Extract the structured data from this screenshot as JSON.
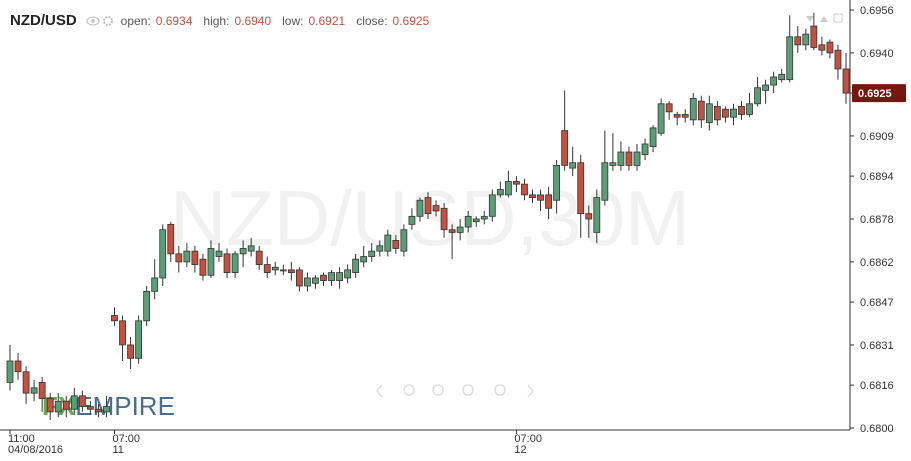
{
  "chart_data": {
    "type": "candlestick",
    "title": "NZD/USD",
    "summary_labels": [
      "open:",
      "high:",
      "low:",
      "close:"
    ],
    "summary_values": [
      "0.6934",
      "0.6940",
      "0.6921",
      "0.6925"
    ],
    "watermark": "NZD/USD,30M",
    "logo": [
      "FX",
      "EMPIRE"
    ],
    "up_color": "#5b9e76",
    "down_color": "#c4503f",
    "last_price": 0.6925,
    "ylim": [
      0.68,
      0.6956
    ],
    "yticks": [
      {
        "value": 0.68,
        "label": "0.6800"
      },
      0.6816,
      0.6831,
      0.6847,
      0.6862,
      0.6878,
      0.6894,
      0.6909,
      0.6925,
      {
        "value": 0.694,
        "label": "0.6940"
      },
      0.6956
    ],
    "xticks": [
      {
        "value": 0,
        "label": "11:00",
        "sublabel": "04/08/2016"
      },
      {
        "value": 13,
        "label": "07:00",
        "sublabel": "11"
      },
      {
        "value": 63,
        "label": "07:00",
        "sublabel": "12"
      }
    ],
    "open": [
      0.6817,
      0.6825,
      0.6821,
      0.6813,
      0.6817,
      0.6811,
      0.6806,
      0.681,
      0.6807,
      0.6812,
      0.6808,
      0.6807,
      0.6806,
      0.6842,
      0.684,
      0.6831,
      0.6826,
      0.684,
      0.6851,
      0.6856,
      0.6876,
      0.6865,
      0.6862,
      0.6866,
      0.6863,
      0.6857,
      0.6864,
      0.6865,
      0.6858,
      0.6865,
      0.6866,
      0.6866,
      0.6861,
      0.6859,
      0.6859,
      0.6859,
      0.6859,
      0.6853,
      0.6854,
      0.6857,
      0.6855,
      0.6855,
      0.6856,
      0.6858,
      0.6862,
      0.6864,
      0.6866,
      0.6866,
      0.687,
      0.6866,
      0.6876,
      0.6879,
      0.6886,
      0.6883,
      0.6882,
      0.6874,
      0.6873,
      0.6875,
      0.6877,
      0.6878,
      0.6879,
      0.6887,
      0.6887,
      0.6892,
      0.6891,
      0.6887,
      0.6887,
      0.6887,
      0.6885,
      0.6911,
      0.6897,
      0.6899,
      0.688,
      0.6873,
      0.6885,
      0.6898,
      0.6898,
      0.6903,
      0.6898,
      0.6902,
      0.6905,
      0.691,
      0.6921,
      0.6917,
      0.6917,
      0.6915,
      0.6922,
      0.6914,
      0.692,
      0.6919,
      0.6916,
      0.692,
      0.6917,
      0.6921,
      0.6926,
      0.6928,
      0.693,
      0.693,
      0.6946,
      0.6943,
      0.695,
      0.6943,
      0.6944,
      0.6941,
      0.6934
    ],
    "high": [
      0.6831,
      0.6828,
      0.6823,
      0.6818,
      0.6819,
      0.6813,
      0.6813,
      0.6812,
      0.6815,
      0.6814,
      0.681,
      0.6809,
      0.6812,
      0.6845,
      0.6842,
      0.6834,
      0.6842,
      0.6853,
      0.6863,
      0.6876,
      0.6877,
      0.6868,
      0.6869,
      0.6868,
      0.6865,
      0.687,
      0.6869,
      0.6867,
      0.6866,
      0.687,
      0.6871,
      0.6868,
      0.6864,
      0.6862,
      0.6861,
      0.6862,
      0.686,
      0.6858,
      0.6857,
      0.6858,
      0.6859,
      0.686,
      0.6861,
      0.6865,
      0.6868,
      0.6869,
      0.687,
      0.6874,
      0.6872,
      0.6876,
      0.6882,
      0.6886,
      0.6888,
      0.6885,
      0.6884,
      0.6876,
      0.6878,
      0.6881,
      0.6879,
      0.6881,
      0.6889,
      0.6892,
      0.6896,
      0.6894,
      0.6893,
      0.6889,
      0.6889,
      0.689,
      0.69,
      0.6926,
      0.6905,
      0.6902,
      0.6883,
      0.6889,
      0.6911,
      0.691,
      0.6907,
      0.6905,
      0.6906,
      0.6908,
      0.6913,
      0.6923,
      0.6922,
      0.6918,
      0.6919,
      0.6925,
      0.6924,
      0.6924,
      0.6922,
      0.692,
      0.6921,
      0.6922,
      0.6925,
      0.6931,
      0.693,
      0.6933,
      0.6934,
      0.6954,
      0.695,
      0.6949,
      0.6955,
      0.6946,
      0.6945,
      0.6943,
      0.694
    ],
    "low": [
      0.6814,
      0.6818,
      0.6809,
      0.681,
      0.6806,
      0.6803,
      0.6804,
      0.6804,
      0.6805,
      0.6806,
      0.6805,
      0.6804,
      0.6804,
      0.6838,
      0.6825,
      0.6822,
      0.6824,
      0.6838,
      0.6848,
      0.6853,
      0.6862,
      0.6858,
      0.686,
      0.6858,
      0.6855,
      0.6856,
      0.6862,
      0.6856,
      0.6856,
      0.686,
      0.6864,
      0.6859,
      0.6856,
      0.6857,
      0.6857,
      0.6855,
      0.6851,
      0.6851,
      0.6852,
      0.6853,
      0.6853,
      0.6852,
      0.6854,
      0.6856,
      0.686,
      0.6862,
      0.6864,
      0.6864,
      0.6865,
      0.6864,
      0.6874,
      0.6877,
      0.6878,
      0.6879,
      0.6871,
      0.6863,
      0.687,
      0.6873,
      0.6875,
      0.6876,
      0.6877,
      0.6886,
      0.6886,
      0.6888,
      0.6885,
      0.6884,
      0.6881,
      0.6878,
      0.688,
      0.6896,
      0.6894,
      0.6871,
      0.6871,
      0.6869,
      0.6883,
      0.6896,
      0.6896,
      0.6896,
      0.6896,
      0.69,
      0.6903,
      0.6909,
      0.6915,
      0.6913,
      0.6914,
      0.6913,
      0.6912,
      0.6911,
      0.6913,
      0.6914,
      0.6913,
      0.6915,
      0.6916,
      0.692,
      0.6921,
      0.6925,
      0.6929,
      0.6929,
      0.694,
      0.6941,
      0.6941,
      0.6939,
      0.6938,
      0.693,
      0.6921
    ],
    "close": [
      0.6825,
      0.6821,
      0.6813,
      0.6815,
      0.6811,
      0.6806,
      0.681,
      0.6807,
      0.6812,
      0.6808,
      0.6807,
      0.6806,
      0.6808,
      0.684,
      0.6831,
      0.6826,
      0.684,
      0.6851,
      0.6856,
      0.6874,
      0.6865,
      0.6862,
      0.6866,
      0.6861,
      0.6857,
      0.6867,
      0.6866,
      0.6858,
      0.6865,
      0.6867,
      0.6868,
      0.6861,
      0.6858,
      0.686,
      0.6859,
      0.6858,
      0.6853,
      0.6856,
      0.6856,
      0.6855,
      0.6858,
      0.6858,
      0.6859,
      0.6863,
      0.6864,
      0.6866,
      0.6868,
      0.6872,
      0.6867,
      0.6874,
      0.6879,
      0.6885,
      0.688,
      0.6881,
      0.6874,
      0.6873,
      0.6875,
      0.6879,
      0.6878,
      0.6879,
      0.6887,
      0.6889,
      0.6892,
      0.6891,
      0.6887,
      0.6886,
      0.6885,
      0.6882,
      0.6898,
      0.6898,
      0.6899,
      0.688,
      0.6878,
      0.6886,
      0.6899,
      0.6899,
      0.6903,
      0.6898,
      0.6903,
      0.6906,
      0.6912,
      0.6921,
      0.6918,
      0.6916,
      0.6916,
      0.6923,
      0.6915,
      0.6921,
      0.6915,
      0.6916,
      0.6919,
      0.6917,
      0.6921,
      0.6927,
      0.6928,
      0.6931,
      0.6932,
      0.6946,
      0.6943,
      0.6947,
      0.6942,
      0.6941,
      0.694,
      0.6934,
      0.6925
    ]
  }
}
